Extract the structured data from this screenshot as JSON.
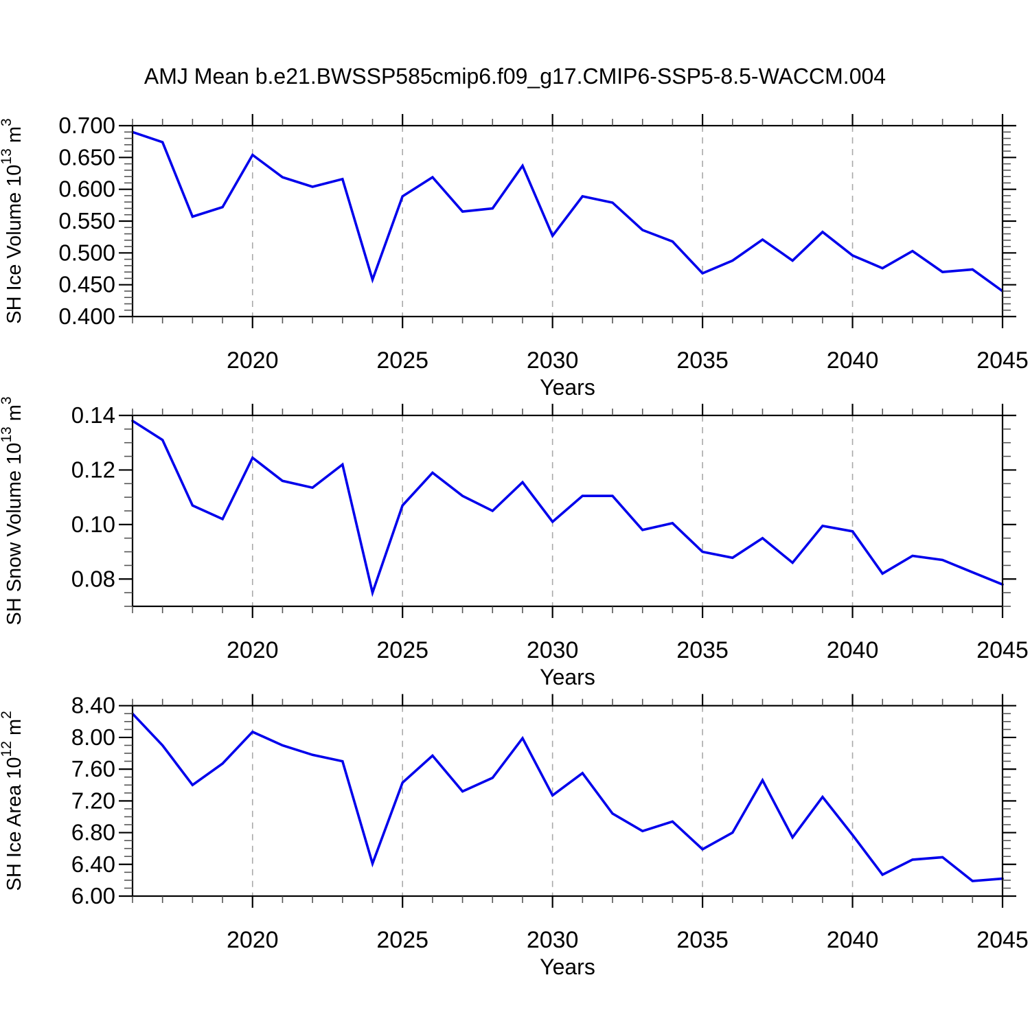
{
  "title": "AMJ Mean b.e21.BWSSP585cmip6.f09_g17.CMIP6-SSP5-8.5-WACCM.004",
  "colors": {
    "line": "#0000EB",
    "grid": "#A9A9A9",
    "frame": "#000000",
    "minor_tick": "#555555",
    "text": "#000000"
  },
  "chart_data": [
    {
      "type": "line",
      "id": "sh-ice-volume",
      "ylabel": "SH Ice Volume 10^13 m^3",
      "ylabel_parts": [
        {
          "t": "SH Ice Volume 10",
          "sup": false
        },
        {
          "t": "13",
          "sup": true
        },
        {
          "t": " m",
          "sup": false
        },
        {
          "t": "3",
          "sup": true
        }
      ],
      "xlabel": "Years",
      "x": [
        2016,
        2017,
        2018,
        2019,
        2020,
        2021,
        2022,
        2023,
        2024,
        2025,
        2026,
        2027,
        2028,
        2029,
        2030,
        2031,
        2032,
        2033,
        2034,
        2035,
        2036,
        2037,
        2038,
        2039,
        2040,
        2041,
        2042,
        2043,
        2044,
        2045
      ],
      "values": [
        0.69,
        0.674,
        0.557,
        0.572,
        0.654,
        0.619,
        0.604,
        0.616,
        0.458,
        0.589,
        0.619,
        0.565,
        0.57,
        0.637,
        0.527,
        0.589,
        0.579,
        0.536,
        0.518,
        0.468,
        0.488,
        0.521,
        0.488,
        0.533,
        0.496,
        0.476,
        0.503,
        0.47,
        0.474,
        0.44
      ],
      "ylim": [
        0.4,
        0.7
      ],
      "yticks": [
        0.4,
        0.45,
        0.5,
        0.55,
        0.6,
        0.65,
        0.7
      ],
      "ytick_labels": [
        "0.400",
        "0.450",
        "0.500",
        "0.550",
        "0.600",
        "0.650",
        "0.700"
      ],
      "yminor_step": 0.01,
      "xlim": [
        2016,
        2045
      ],
      "xticks_labeled": [
        2020,
        2025,
        2030,
        2035,
        2040,
        2045
      ],
      "xtick_labels": [
        "2020",
        "2025",
        "2030",
        "2035",
        "2040",
        "2045"
      ],
      "grid_x": [
        2020,
        2025,
        2030,
        2035,
        2040
      ]
    },
    {
      "type": "line",
      "id": "sh-snow-volume",
      "ylabel": "SH Snow Volume 10^13 m^3",
      "ylabel_parts": [
        {
          "t": "SH Snow Volume 10",
          "sup": false
        },
        {
          "t": "13",
          "sup": true
        },
        {
          "t": " m",
          "sup": false
        },
        {
          "t": "3",
          "sup": true
        }
      ],
      "xlabel": "Years",
      "x": [
        2016,
        2017,
        2018,
        2019,
        2020,
        2021,
        2022,
        2023,
        2024,
        2025,
        2026,
        2027,
        2028,
        2029,
        2030,
        2031,
        2032,
        2033,
        2034,
        2035,
        2036,
        2037,
        2038,
        2039,
        2040,
        2041,
        2042,
        2043,
        2044,
        2045
      ],
      "values": [
        0.138,
        0.131,
        0.107,
        0.102,
        0.1245,
        0.116,
        0.1135,
        0.122,
        0.075,
        0.107,
        0.119,
        0.1105,
        0.105,
        0.1155,
        0.101,
        0.1105,
        0.1105,
        0.098,
        0.1005,
        0.09,
        0.0878,
        0.095,
        0.086,
        0.0995,
        0.0975,
        0.082,
        0.0885,
        0.087,
        0.0825,
        0.078
      ],
      "ylim": [
        0.07,
        0.14
      ],
      "yticks": [
        0.08,
        0.1,
        0.12,
        0.14
      ],
      "ytick_labels": [
        "0.08",
        "0.10",
        "0.12",
        "0.14"
      ],
      "yminor_step": 0.005,
      "xlim": [
        2016,
        2045
      ],
      "xticks_labeled": [
        2020,
        2025,
        2030,
        2035,
        2040,
        2045
      ],
      "xtick_labels": [
        "2020",
        "2025",
        "2030",
        "2035",
        "2040",
        "2045"
      ],
      "grid_x": [
        2020,
        2025,
        2030,
        2035,
        2040
      ]
    },
    {
      "type": "line",
      "id": "sh-ice-area",
      "ylabel": "SH Ice Area 10^12 m^2",
      "ylabel_parts": [
        {
          "t": "SH Ice Area 10",
          "sup": false
        },
        {
          "t": "12",
          "sup": true
        },
        {
          "t": " m",
          "sup": false
        },
        {
          "t": "2",
          "sup": true
        }
      ],
      "xlabel": "Years",
      "x": [
        2016,
        2017,
        2018,
        2019,
        2020,
        2021,
        2022,
        2023,
        2024,
        2025,
        2026,
        2027,
        2028,
        2029,
        2030,
        2031,
        2032,
        2033,
        2034,
        2035,
        2036,
        2037,
        2038,
        2039,
        2040,
        2041,
        2042,
        2043,
        2044,
        2045
      ],
      "values": [
        8.3,
        7.9,
        7.4,
        7.67,
        8.07,
        7.9,
        7.78,
        7.7,
        6.41,
        7.43,
        7.77,
        7.32,
        7.49,
        7.99,
        7.27,
        7.55,
        7.04,
        6.82,
        6.94,
        6.59,
        6.8,
        7.46,
        6.74,
        7.25,
        6.77,
        6.27,
        6.46,
        6.49,
        6.19,
        6.22
      ],
      "ylim": [
        6.0,
        8.4
      ],
      "yticks": [
        6.0,
        6.4,
        6.8,
        7.2,
        7.6,
        8.0,
        8.4
      ],
      "ytick_labels": [
        "6.00",
        "6.40",
        "6.80",
        "7.20",
        "7.60",
        "8.00",
        "8.40"
      ],
      "yminor_step": 0.1,
      "xlim": [
        2016,
        2045
      ],
      "xticks_labeled": [
        2020,
        2025,
        2030,
        2035,
        2040,
        2045
      ],
      "xtick_labels": [
        "2020",
        "2025",
        "2030",
        "2035",
        "2040",
        "2045"
      ],
      "grid_x": [
        2020,
        2025,
        2030,
        2035,
        2040
      ]
    }
  ]
}
